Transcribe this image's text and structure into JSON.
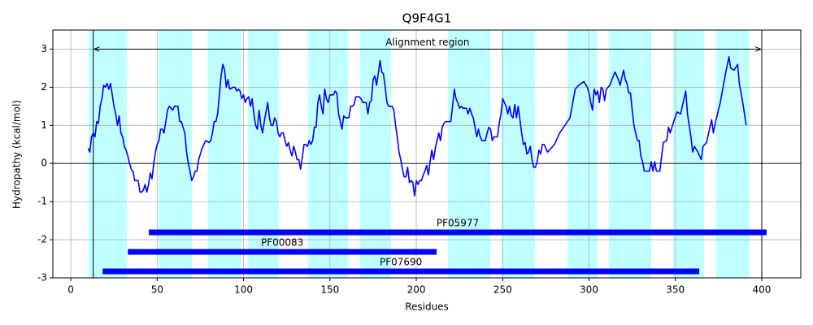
{
  "chart_data": {
    "type": "line",
    "title": "Q9F4G1",
    "x_label": "Residues",
    "y_label": "Hydropathy (kcal/mol)",
    "color": "#0000ff",
    "span_color": "#00ffff",
    "domain_color": "#0000ff",
    "grid": true,
    "hline": 0,
    "xlim": [
      -10.4,
      422.6
    ],
    "ylim": [
      -3,
      3.5
    ],
    "xticks": [
      0,
      50,
      100,
      150,
      200,
      250,
      300,
      350,
      400
    ],
    "yticks": [
      -3,
      -2,
      -1,
      0,
      1,
      2,
      3
    ],
    "alignment": {
      "label": "Alignment region",
      "start": 13,
      "end": 400,
      "y": 3
    },
    "spans": [
      [
        10.4,
        32.5
      ],
      [
        50.8,
        70.1
      ],
      [
        79.5,
        98.8
      ],
      [
        102.6,
        120.5
      ],
      [
        137.4,
        160.5
      ],
      [
        167.5,
        185.4
      ],
      [
        218.4,
        242.8
      ],
      [
        249.4,
        268.7
      ],
      [
        287.5,
        304.9
      ],
      [
        311.5,
        336
      ],
      [
        348.7,
        366.6
      ],
      [
        373.6,
        392.9
      ]
    ],
    "domains": [
      {
        "name": "PF05977",
        "start": 45.2,
        "end": 402.8
      },
      {
        "name": "PF00083",
        "start": 33,
        "end": 211.8
      },
      {
        "name": "PF07690",
        "start": 18.4,
        "end": 363.8
      }
    ],
    "x": [
      10,
      11,
      12,
      13,
      14,
      15,
      16,
      17,
      18,
      19,
      20,
      21,
      22,
      23,
      24,
      25,
      26,
      27,
      28,
      29,
      30,
      31,
      32,
      33,
      34,
      35,
      36,
      37,
      39,
      40,
      41,
      42,
      43,
      44,
      45,
      46,
      47,
      48,
      49,
      50,
      51,
      52,
      53,
      54,
      55,
      56,
      57,
      59,
      60,
      62,
      63,
      64,
      65,
      66,
      67,
      68,
      69,
      70,
      71,
      72,
      73,
      74,
      75,
      76,
      77,
      78,
      80,
      81,
      82,
      83,
      84,
      85,
      86,
      87,
      88,
      89,
      90,
      91,
      92,
      94,
      95,
      96,
      97,
      98,
      99,
      100,
      101,
      102,
      103,
      104,
      105,
      106,
      107,
      108,
      109,
      110,
      111,
      112,
      113,
      114,
      115,
      116,
      117,
      118,
      119,
      120,
      121,
      122,
      123,
      124,
      125,
      126,
      127,
      128,
      129,
      130,
      131,
      132,
      133,
      134,
      135,
      136,
      137,
      138,
      139,
      140,
      141,
      142,
      143,
      144,
      145,
      146,
      147,
      148,
      149,
      150,
      152,
      153,
      154,
      155,
      156,
      157,
      158,
      159,
      161,
      162,
      163,
      164,
      165,
      167,
      168,
      169,
      171,
      172,
      173,
      174,
      175,
      176,
      177,
      178,
      179,
      180,
      181,
      182,
      183,
      184,
      186,
      187,
      188,
      189,
      190,
      191,
      192,
      193,
      194,
      195,
      196,
      197,
      198,
      199,
      200,
      201,
      202,
      203,
      204,
      205,
      206,
      207,
      208,
      209,
      210,
      211,
      212,
      213,
      214,
      215,
      216,
      217,
      219,
      220,
      221,
      222,
      223,
      224,
      225,
      226,
      227,
      229,
      230,
      231,
      232,
      233,
      234,
      235,
      236,
      237,
      238,
      240,
      241,
      242,
      243,
      244,
      245,
      247,
      248,
      249,
      250,
      251,
      252,
      253,
      254,
      255,
      256,
      257,
      258,
      259,
      260,
      261,
      262,
      263,
      264,
      265,
      266,
      267,
      268,
      269,
      270,
      271,
      272,
      273,
      274,
      276,
      280,
      283,
      286,
      289,
      292,
      294,
      297,
      299,
      300,
      301,
      302,
      303,
      304,
      305,
      306,
      307,
      308,
      309,
      310,
      312,
      315,
      317,
      318,
      320,
      321,
      322,
      323,
      324,
      325,
      326,
      327,
      328,
      329,
      330,
      331,
      332,
      335,
      336,
      337,
      338,
      339,
      341,
      343,
      345,
      346,
      347,
      349,
      351,
      353,
      356,
      357,
      358,
      359,
      360,
      361,
      363,
      365,
      366,
      368,
      370,
      371,
      372,
      373,
      376,
      378,
      379,
      381,
      382,
      384,
      386,
      387,
      389,
      390,
      391
    ],
    "values": [
      0.4,
      0.3,
      0.7,
      0.8,
      0.7,
      1.1,
      1.05,
      1.5,
      1.7,
      2.05,
      2.0,
      2.1,
      1.95,
      2.1,
      1.8,
      1.5,
      1.3,
      1.0,
      1.25,
      0.8,
      0.7,
      0.45,
      0.35,
      0.2,
      0.0,
      -0.15,
      -0.2,
      -0.45,
      -0.45,
      -0.75,
      -0.75,
      -0.7,
      -0.55,
      -0.75,
      -0.55,
      -0.25,
      -0.4,
      0.0,
      0.3,
      0.5,
      0.6,
      0.9,
      0.9,
      0.8,
      1.1,
      1.4,
      1.5,
      1.4,
      1.5,
      1.5,
      1.1,
      1.1,
      0.95,
      0.8,
      0.3,
      0.0,
      -0.2,
      -0.45,
      -0.35,
      -0.2,
      -0.2,
      0.1,
      0.25,
      0.4,
      0.5,
      0.6,
      0.55,
      0.6,
      0.8,
      1.1,
      1.1,
      1.3,
      1.8,
      2.3,
      2.6,
      2.45,
      2.0,
      2.2,
      1.95,
      2.0,
      2.0,
      1.9,
      1.95,
      1.9,
      1.7,
      1.8,
      1.6,
      1.7,
      1.75,
      1.5,
      1.7,
      1.3,
      1.0,
      0.9,
      1.4,
      1.0,
      0.8,
      1.1,
      1.35,
      1.6,
      1.2,
      1.0,
      1.0,
      1.2,
      1.1,
      0.8,
      0.7,
      0.8,
      0.8,
      0.6,
      0.45,
      0.55,
      0.35,
      0.2,
      0.45,
      0.3,
      0.1,
      0.1,
      -0.15,
      0.15,
      0.5,
      0.5,
      0.45,
      0.6,
      0.5,
      0.6,
      0.95,
      0.95,
      1.6,
      1.8,
      1.5,
      1.3,
      1.95,
      1.7,
      1.6,
      1.8,
      1.8,
      1.9,
      1.85,
      1.3,
      1.1,
      0.9,
      1.25,
      1.2,
      1.2,
      1.5,
      1.5,
      1.55,
      1.75,
      1.75,
      1.7,
      1.6,
      1.6,
      1.3,
      1.6,
      1.65,
      2.2,
      2.3,
      2.05,
      2.35,
      2.7,
      2.4,
      2.35,
      2.0,
      1.6,
      1.5,
      1.5,
      1.4,
      1.0,
      0.7,
      0.3,
      0.1,
      -0.15,
      -0.35,
      -0.35,
      -0.1,
      -0.5,
      -0.45,
      -0.5,
      -0.85,
      -0.45,
      -0.55,
      -0.45,
      -0.45,
      -0.3,
      -0.2,
      -0.05,
      -0.3,
      0.05,
      0.35,
      0.1,
      0.4,
      0.6,
      0.8,
      0.6,
      0.95,
      1.05,
      1.1,
      1.1,
      1.1,
      1.5,
      1.95,
      1.7,
      1.6,
      1.45,
      1.5,
      1.45,
      1.45,
      1.3,
      1.45,
      1.3,
      1.2,
      0.95,
      0.7,
      0.9,
      0.7,
      0.6,
      0.6,
      0.8,
      0.95,
      0.9,
      0.6,
      0.7,
      0.7,
      1.05,
      1.3,
      1.7,
      1.6,
      1.5,
      1.3,
      1.5,
      1.25,
      1.2,
      1.55,
      1.2,
      1.5,
      1.15,
      0.8,
      0.5,
      0.55,
      0.25,
      0.3,
      0.45,
      0.1,
      -0.1,
      -0.1,
      0.05,
      0.35,
      0.25,
      0.5,
      0.5,
      0.3,
      0.5,
      0.8,
      1.0,
      1.2,
      1.95,
      2.05,
      2.15,
      2.0,
      1.85,
      1.6,
      1.4,
      1.95,
      1.8,
      1.9,
      1.6,
      2.0,
      1.95,
      1.65,
      1.95,
      2.05,
      2.4,
      2.2,
      2.05,
      2.45,
      2.2,
      2.1,
      1.85,
      1.85,
      1.4,
      1.0,
      0.8,
      0.6,
      0.6,
      0.2,
      0.05,
      -0.2,
      -0.2,
      0.05,
      -0.2,
      0.05,
      -0.2,
      -0.2,
      0.55,
      0.6,
      0.95,
      0.8,
      1.1,
      1.35,
      1.3,
      1.9,
      1.3,
      1.0,
      0.7,
      0.3,
      0.45,
      0.3,
      0.1,
      0.45,
      0.55,
      0.95,
      1.15,
      0.8,
      1.05,
      1.6,
      2.1,
      2.35,
      2.8,
      2.5,
      2.45,
      2.6,
      2.1,
      1.6,
      1.3,
      1.0
    ]
  }
}
